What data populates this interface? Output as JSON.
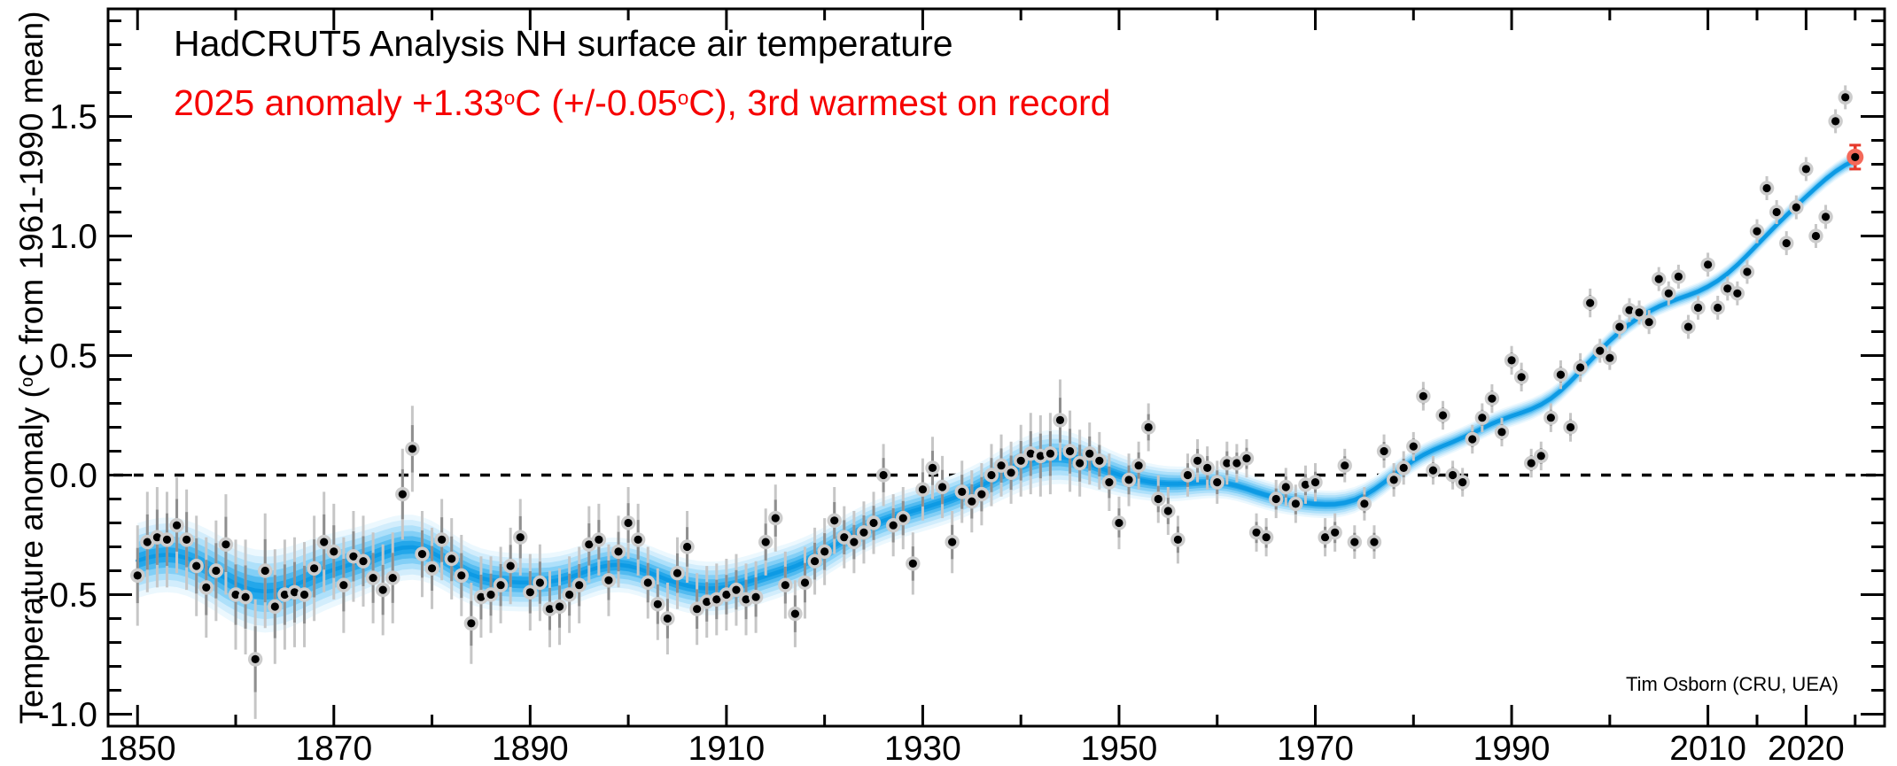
{
  "title": "HadCRUT5 Analysis NH surface air temperature",
  "subtitle": {
    "p1": "2025 anomaly +1.33",
    "sup1": "o",
    "p2": "C (+/-0.05",
    "sup2": "o",
    "p3": "C), 3rd warmest on record",
    "color": "#f60000"
  },
  "y_axis_title": {
    "pre": "Temperature anomaly (",
    "sup": "o",
    "post": "C from 1961-1990 mean)"
  },
  "attribution": "Tim Osborn (CRU, UEA)",
  "chart_data": {
    "type": "scatter",
    "subtype": "annual points with uncertainty bars and gaussian-smoothed band",
    "title": "HadCRUT5 Analysis NH surface air temperature",
    "xlabel": "",
    "ylabel": "Temperature anomaly (oC from 1961-1990 mean)",
    "x_range": [
      1847,
      2028
    ],
    "y_range": [
      -1.05,
      1.95
    ],
    "x_major_ticks": [
      1850,
      1870,
      1890,
      1910,
      1930,
      1950,
      1970,
      1990,
      2010,
      2020
    ],
    "x_tick_labels": [
      "1850",
      "1870",
      "1890",
      "1910",
      "1930",
      "1950",
      "1970",
      "1990",
      "2010",
      "2020"
    ],
    "x_minor_ticks": [
      1860,
      1880,
      1900,
      1920,
      1940,
      1960,
      1980,
      2000,
      2015,
      2025
    ],
    "y_major_ticks": [
      -1.0,
      -0.5,
      0.0,
      0.5,
      1.0,
      1.5
    ],
    "y_tick_labels": [
      "-1.0",
      "-0.5",
      "0.0",
      "0.5",
      "1.0",
      "1.5"
    ],
    "y_minor_step": 0.1,
    "zero_line": true,
    "grid": false,
    "legend": false,
    "start_year": 1850,
    "end_year": 2025,
    "values": [
      -0.42,
      -0.28,
      -0.26,
      -0.27,
      -0.21,
      -0.27,
      -0.38,
      -0.47,
      -0.4,
      -0.29,
      -0.5,
      -0.51,
      -0.77,
      -0.4,
      -0.55,
      -0.5,
      -0.49,
      -0.5,
      -0.39,
      -0.28,
      -0.32,
      -0.46,
      -0.34,
      -0.36,
      -0.43,
      -0.48,
      -0.43,
      -0.08,
      0.11,
      -0.33,
      -0.39,
      -0.27,
      -0.35,
      -0.42,
      -0.62,
      -0.51,
      -0.5,
      -0.46,
      -0.38,
      -0.26,
      -0.49,
      -0.45,
      -0.56,
      -0.55,
      -0.5,
      -0.46,
      -0.29,
      -0.27,
      -0.44,
      -0.32,
      -0.2,
      -0.27,
      -0.45,
      -0.54,
      -0.6,
      -0.41,
      -0.3,
      -0.56,
      -0.53,
      -0.52,
      -0.5,
      -0.48,
      -0.52,
      -0.51,
      -0.28,
      -0.18,
      -0.46,
      -0.58,
      -0.45,
      -0.36,
      -0.32,
      -0.19,
      -0.26,
      -0.28,
      -0.24,
      -0.2,
      0.0,
      -0.21,
      -0.18,
      -0.37,
      -0.06,
      0.03,
      -0.05,
      -0.28,
      -0.07,
      -0.11,
      -0.08,
      0.0,
      0.04,
      0.01,
      0.06,
      0.09,
      0.08,
      0.09,
      0.23,
      0.1,
      0.05,
      0.09,
      0.06,
      -0.03,
      -0.2,
      -0.02,
      0.04,
      0.2,
      -0.1,
      -0.15,
      -0.27,
      0.0,
      0.06,
      0.03,
      -0.03,
      0.05,
      0.05,
      0.07,
      -0.24,
      -0.26,
      -0.1,
      -0.05,
      -0.12,
      -0.04,
      -0.03,
      -0.26,
      -0.24,
      0.04,
      -0.28,
      -0.12,
      -0.28,
      0.1,
      -0.02,
      0.03,
      0.12,
      0.33,
      0.02,
      0.25,
      0.0,
      -0.03,
      0.15,
      0.24,
      0.32,
      0.18,
      0.48,
      0.41,
      0.05,
      0.08,
      0.24,
      0.42,
      0.2,
      0.45,
      0.72,
      0.52,
      0.49,
      0.62,
      0.69,
      0.68,
      0.64,
      0.82,
      0.76,
      0.83,
      0.62,
      0.7,
      0.88,
      0.7,
      0.78,
      0.76,
      0.85,
      1.02,
      1.2,
      1.1,
      0.97,
      1.12,
      1.28,
      1.0,
      1.08,
      1.48,
      1.58,
      1.33
    ],
    "uncertainty": [
      0.21,
      0.21,
      0.21,
      0.2,
      0.2,
      0.21,
      0.21,
      0.21,
      0.21,
      0.21,
      0.23,
      0.24,
      0.25,
      0.24,
      0.24,
      0.23,
      0.23,
      0.22,
      0.22,
      0.21,
      0.2,
      0.2,
      0.19,
      0.19,
      0.19,
      0.19,
      0.19,
      0.19,
      0.18,
      0.18,
      0.17,
      0.17,
      0.17,
      0.17,
      0.17,
      0.17,
      0.16,
      0.16,
      0.16,
      0.16,
      0.16,
      0.16,
      0.16,
      0.16,
      0.16,
      0.16,
      0.16,
      0.15,
      0.15,
      0.15,
      0.15,
      0.15,
      0.15,
      0.15,
      0.15,
      0.15,
      0.15,
      0.15,
      0.15,
      0.15,
      0.15,
      0.15,
      0.15,
      0.15,
      0.14,
      0.14,
      0.14,
      0.14,
      0.15,
      0.14,
      0.14,
      0.14,
      0.13,
      0.13,
      0.13,
      0.13,
      0.13,
      0.13,
      0.13,
      0.13,
      0.13,
      0.13,
      0.13,
      0.13,
      0.13,
      0.13,
      0.13,
      0.13,
      0.13,
      0.13,
      0.15,
      0.17,
      0.17,
      0.17,
      0.17,
      0.17,
      0.14,
      0.13,
      0.12,
      0.12,
      0.11,
      0.11,
      0.1,
      0.1,
      0.1,
      0.1,
      0.1,
      0.09,
      0.09,
      0.09,
      0.09,
      0.09,
      0.08,
      0.08,
      0.08,
      0.08,
      0.08,
      0.08,
      0.08,
      0.08,
      0.08,
      0.08,
      0.08,
      0.07,
      0.07,
      0.07,
      0.07,
      0.07,
      0.07,
      0.07,
      0.06,
      0.06,
      0.06,
      0.06,
      0.06,
      0.06,
      0.06,
      0.06,
      0.06,
      0.06,
      0.06,
      0.06,
      0.06,
      0.06,
      0.06,
      0.06,
      0.06,
      0.06,
      0.06,
      0.05,
      0.05,
      0.05,
      0.05,
      0.05,
      0.05,
      0.05,
      0.05,
      0.05,
      0.05,
      0.05,
      0.05,
      0.05,
      0.05,
      0.05,
      0.05,
      0.05,
      0.05,
      0.05,
      0.05,
      0.05,
      0.05,
      0.05,
      0.05,
      0.05,
      0.05,
      0.05
    ],
    "highlight_year": 2025,
    "highlight_value": 1.33,
    "smoothing": {
      "type": "gaussian",
      "sigma_years": 3.5,
      "half_window": 10,
      "band_scale": 0.75,
      "band_min": 0.035
    },
    "colors": {
      "point": "#000000",
      "point_halo": "#cccccc",
      "errorbar_outer": "#c6c6c6",
      "errorbar_inner": "#8f8f8f",
      "smooth_line": "#0d9ae4",
      "band": [
        "#ecf8fe",
        "#d2edfc",
        "#aee0fa",
        "#83cff6",
        "#53bbf0",
        "#24a7ea"
      ],
      "band_fractions": [
        1.0,
        0.84,
        0.67,
        0.5,
        0.34,
        0.2
      ],
      "highlight_halo": "#f4695a",
      "highlight_bar": "#e6392b",
      "axis": "#000000",
      "zero_line": "#000000"
    }
  }
}
